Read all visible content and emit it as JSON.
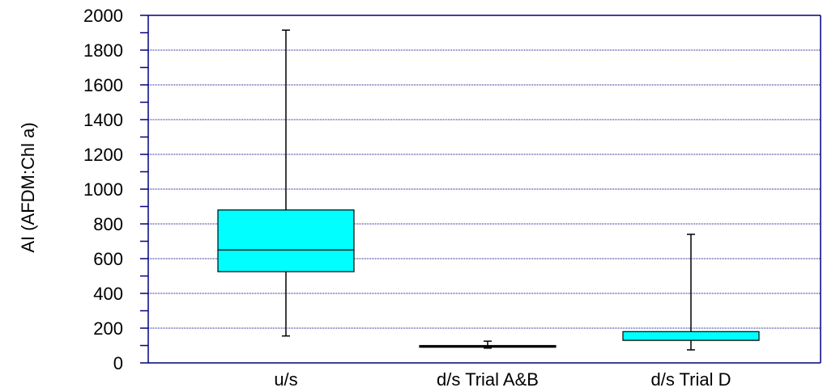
{
  "chart_data": {
    "type": "box",
    "ylabel": "AI (AFDM:Chl a)",
    "xlabel": "",
    "ylim": [
      0,
      2000
    ],
    "yticks": [
      0,
      200,
      400,
      600,
      800,
      1000,
      1200,
      1400,
      1600,
      1800,
      2000
    ],
    "minor_ytick_step": 100,
    "grid": "horizontal-dotted",
    "categories": [
      "u/s",
      "d/s Trial A&B",
      "d/s Trial D"
    ],
    "boxes": [
      {
        "category": "u/s",
        "min": 155,
        "q1": 525,
        "median": 650,
        "q3": 880,
        "max": 1915
      },
      {
        "category": "d/s Trial A&B",
        "min": 85,
        "q1": 90,
        "median": 95,
        "q3": 100,
        "max": 125
      },
      {
        "category": "d/s Trial D",
        "min": 75,
        "q1": 130,
        "median": 130,
        "q3": 180,
        "max": 740
      }
    ]
  },
  "colors": {
    "box_fill": "#00FFFF",
    "axis": "#000080",
    "grid": "#000080",
    "whisker": "#000000"
  }
}
